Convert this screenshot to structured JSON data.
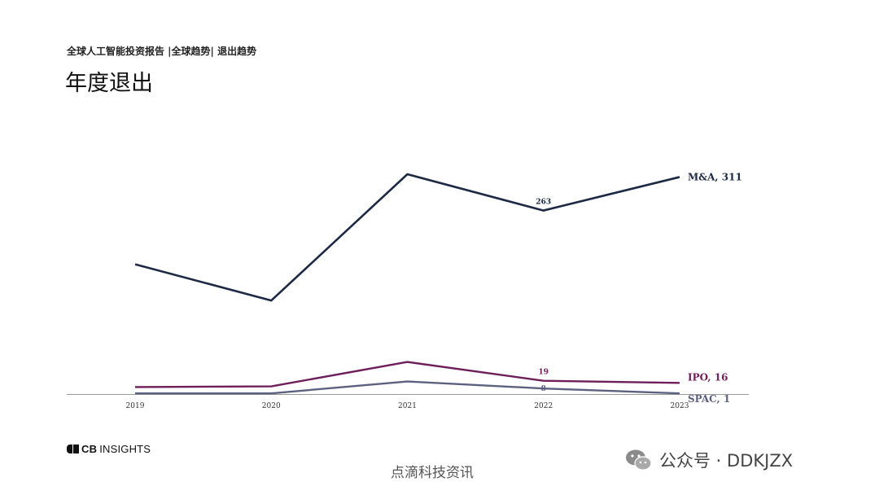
{
  "header": {
    "subtitle": "全球人工智能投资报告 |全球趋势| 退出趋势",
    "title": "年度退出"
  },
  "footer": {
    "logo_text_bold": "CB",
    "logo_text": "INSIGHTS",
    "watermark": "点滴科技资讯",
    "wechat": "公众号 · DDKJZX"
  },
  "colors": {
    "ma": "#1e2a44",
    "ipo": "#6e1f5a",
    "spac": "#5d6180",
    "axis": "#999999"
  },
  "chart_data": {
    "type": "line",
    "x": [
      "2019",
      "2020",
      "2021",
      "2022",
      "2023"
    ],
    "ylim": [
      0,
      320
    ],
    "grid": false,
    "series": [
      {
        "name": "M&A",
        "key": "ma",
        "values": [
          186,
          134,
          315,
          263,
          311
        ],
        "end_label": "M&A, 311",
        "point_labels": [
          {
            "index": 3,
            "text": "263"
          }
        ]
      },
      {
        "name": "IPO",
        "key": "ipo",
        "values": [
          10,
          11,
          46,
          19,
          16
        ],
        "end_label": "IPO, 16",
        "point_labels": [
          {
            "index": 3,
            "text": "19"
          }
        ]
      },
      {
        "name": "SPAC",
        "key": "spac",
        "values": [
          1,
          1,
          18,
          8,
          1
        ],
        "end_label": "SPAC, 1",
        "point_labels": [
          {
            "index": 3,
            "text": "8"
          }
        ]
      }
    ]
  }
}
